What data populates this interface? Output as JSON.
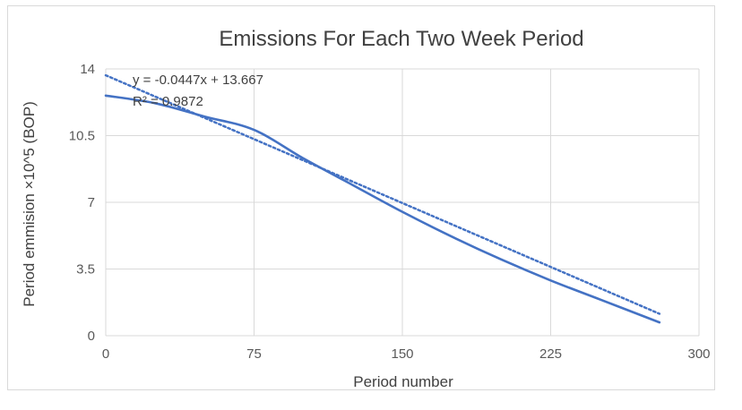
{
  "chart_data": {
    "type": "line",
    "title": "Emissions For Each Two Week Period",
    "xlabel": "Period number",
    "ylabel": "Period emmision ×10^5 (BOP)",
    "xlim": [
      0,
      300
    ],
    "ylim": [
      0,
      14
    ],
    "x_ticks": [
      "0",
      "75",
      "150",
      "225",
      "300"
    ],
    "y_ticks": [
      "0",
      "3.5",
      "7",
      "10.5",
      "14"
    ],
    "x_tick_values": [
      0,
      75,
      150,
      225,
      300
    ],
    "y_tick_values": [
      0,
      3.5,
      7,
      10.5,
      14
    ],
    "grid": "vertical and horizontal",
    "series": [
      {
        "color": "#4472c4",
        "x": [
          0,
          25,
          50,
          75,
          100,
          125,
          150,
          175,
          200,
          225,
          250,
          280
        ],
        "y": [
          12.6,
          12.2,
          11.5,
          10.8,
          9.3,
          7.9,
          6.5,
          5.2,
          4.0,
          2.9,
          1.9,
          0.7
        ]
      }
    ],
    "trendline": {
      "type": "linear",
      "color": "#4472c4",
      "style": "dotted",
      "slope": -0.0447,
      "intercept": 13.667,
      "x_range": [
        0,
        280
      ],
      "equation": "y = -0.0447x + 13.667",
      "r_squared": "R² = 0.9872"
    }
  }
}
